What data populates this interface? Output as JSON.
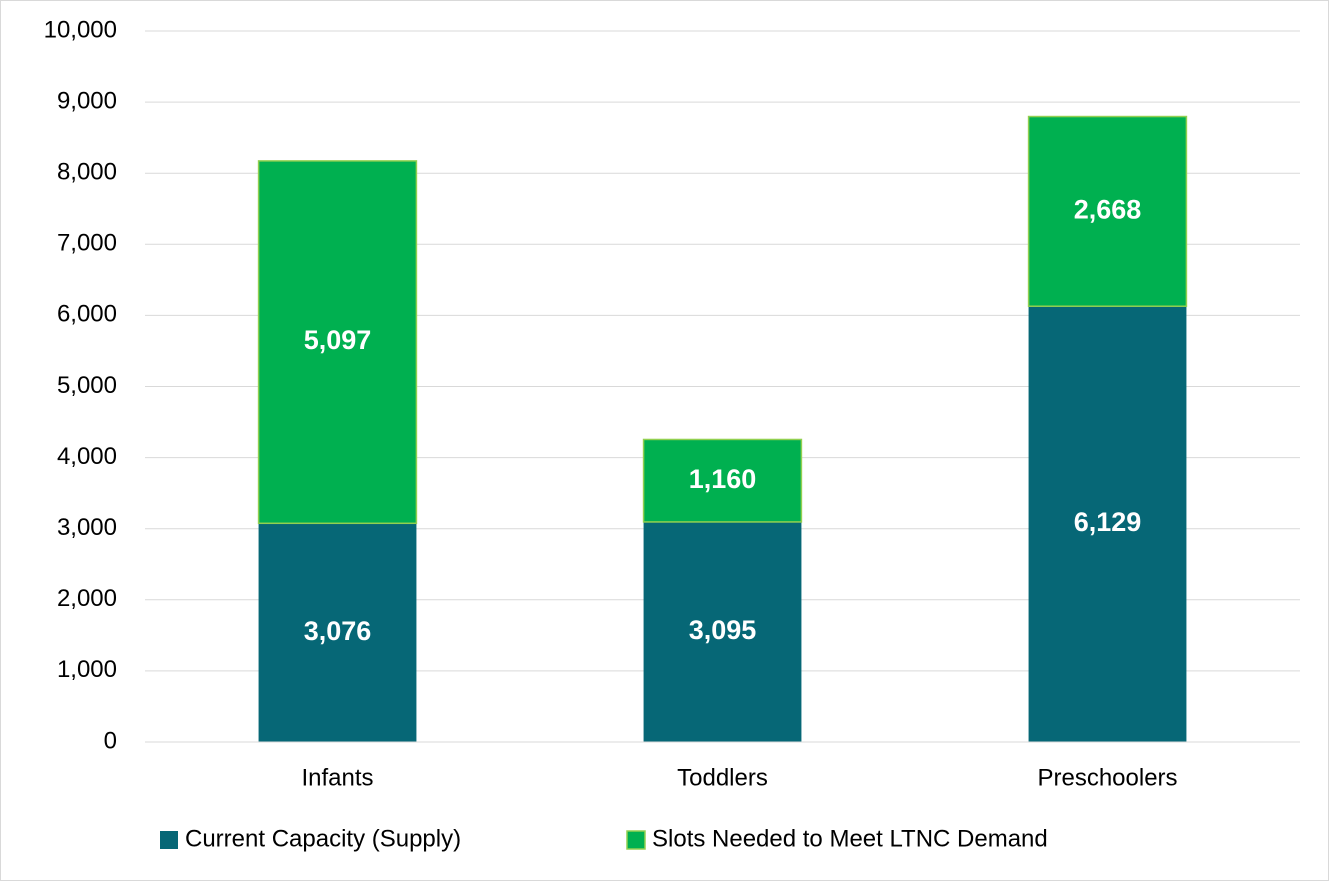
{
  "chart_data": {
    "type": "bar",
    "stacked": true,
    "categories": [
      "Infants",
      "Toddlers",
      "Preschoolers"
    ],
    "series": [
      {
        "name": "Current Capacity (Supply)",
        "color": "#066776",
        "values": [
          3076,
          3095,
          6129
        ],
        "value_labels": [
          "3,076",
          "3,095",
          "6,129"
        ]
      },
      {
        "name": "Slots Needed to Meet LTNC Demand",
        "color": "#00b050",
        "values": [
          5097,
          1160,
          2668
        ],
        "value_labels": [
          "5,097",
          "1,160",
          "2,668"
        ]
      }
    ],
    "ylim": [
      0,
      10000
    ],
    "yticks": [
      0,
      {
        "value": 1000,
        "label": "1,000"
      },
      {
        "value": 2000,
        "label": "2,000"
      },
      {
        "value": 3000,
        "label": "3,000"
      },
      {
        "value": 4000,
        "label": "4,000"
      },
      {
        "value": 5000,
        "label": "5,000"
      },
      {
        "value": 6000,
        "label": "6,000"
      },
      {
        "value": 7000,
        "label": "7,000"
      },
      {
        "value": 8000,
        "label": "8,000"
      },
      {
        "value": 9000,
        "label": "9,000"
      },
      {
        "value": 10000,
        "label": "10,000"
      }
    ],
    "grid": true,
    "legend": "bottom"
  }
}
